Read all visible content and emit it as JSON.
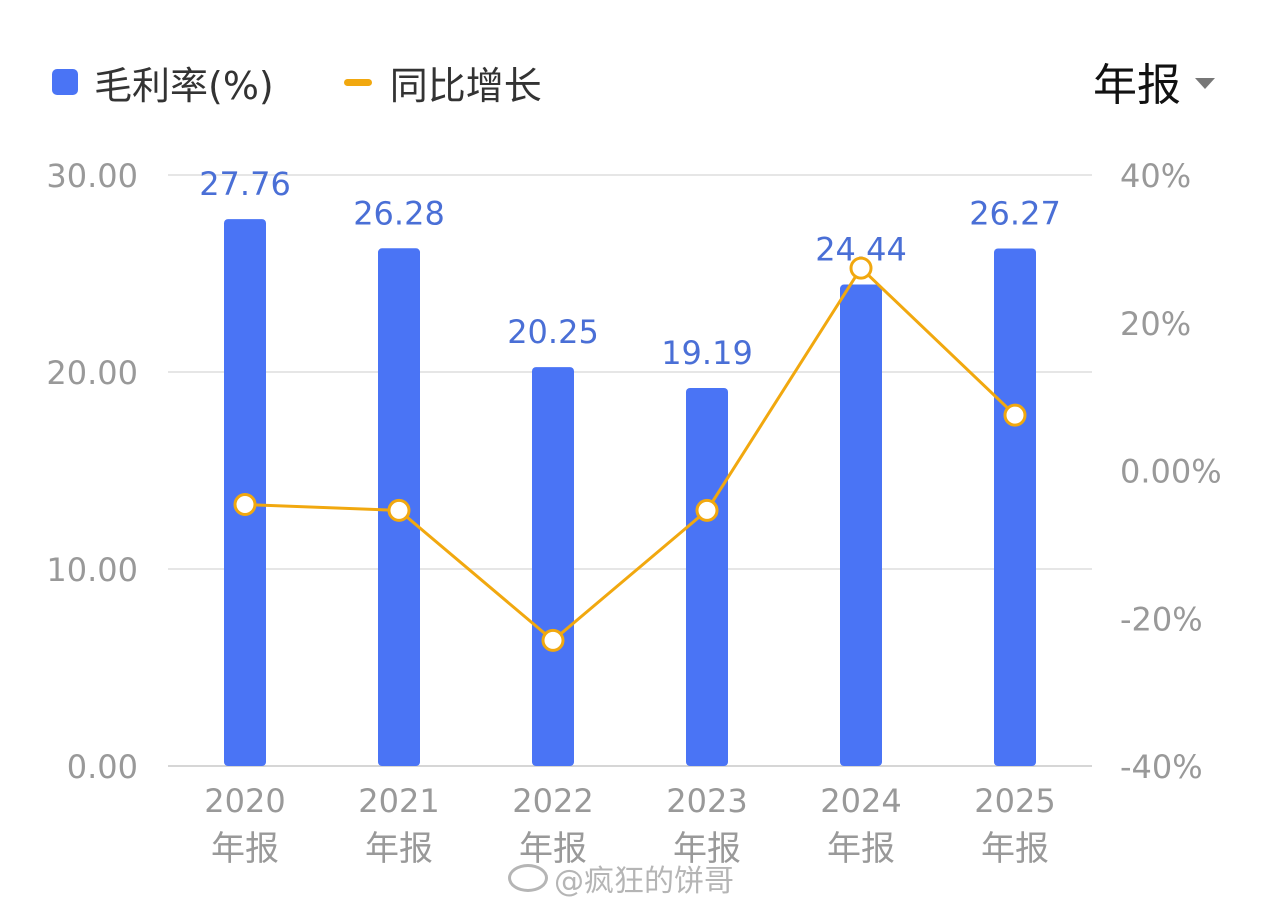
{
  "legend": {
    "bar_label": "毛利率(%)",
    "line_label": "同比增长"
  },
  "period_selector": {
    "label": "年报",
    "icon": "caret-down-icon"
  },
  "watermark": "@疯狂的饼哥",
  "colors": {
    "bar": "#4a74f5",
    "line": "#f1a80f",
    "bar_label": "#4a6fd6",
    "axis_text": "#999999",
    "grid": "#e6e6e6"
  },
  "chart_data": {
    "type": "bar",
    "categories": [
      {
        "year": "2020",
        "period": "年报"
      },
      {
        "year": "2021",
        "period": "年报"
      },
      {
        "year": "2022",
        "period": "年报"
      },
      {
        "year": "2023",
        "period": "年报"
      },
      {
        "year": "2024",
        "period": "年报"
      },
      {
        "year": "2025",
        "period": "年报"
      }
    ],
    "series": [
      {
        "name": "毛利率(%)",
        "type": "bar",
        "axis": "left",
        "values": [
          27.76,
          26.28,
          20.25,
          19.19,
          24.44,
          26.27
        ],
        "labels": [
          "27.76",
          "26.28",
          "20.25",
          "19.19",
          "24.44",
          "26.27"
        ]
      },
      {
        "name": "同比增长",
        "type": "line",
        "axis": "right",
        "values": [
          -4.6,
          -5.4,
          -23.0,
          -5.4,
          27.4,
          7.5
        ]
      }
    ],
    "y_left": {
      "min": 0,
      "max": 30,
      "ticks": [
        0,
        10,
        20,
        30
      ],
      "tick_labels": [
        "0.00",
        "10.00",
        "20.00",
        "30.00"
      ]
    },
    "y_right": {
      "min": -40,
      "max": 40,
      "ticks": [
        -40,
        -20,
        0,
        20,
        40
      ],
      "tick_labels": [
        "-40%",
        "-20%",
        "0.00%",
        "20%",
        "40%"
      ]
    },
    "grid": true,
    "legend_position": "top-left"
  }
}
